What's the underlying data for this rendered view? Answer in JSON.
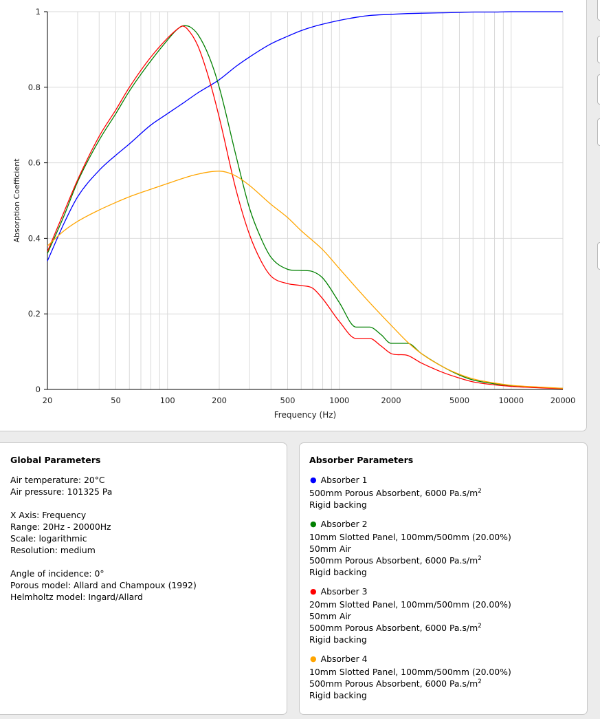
{
  "chart_data": {
    "type": "line",
    "xlabel": "Frequency (Hz)",
    "ylabel": "Absorption Coefficient",
    "x_scale": "log",
    "xlim": [
      20,
      20000
    ],
    "ylim": [
      0,
      1
    ],
    "grid": true,
    "x_ticks": [
      {
        "value": 20,
        "label": "20"
      },
      {
        "value": 50,
        "label": "50"
      },
      {
        "value": 100,
        "label": "100"
      },
      {
        "value": 200,
        "label": "200"
      },
      {
        "value": 500,
        "label": "500"
      },
      {
        "value": 1000,
        "label": "1000"
      },
      {
        "value": 2000,
        "label": "2000"
      },
      {
        "value": 5000,
        "label": "5000"
      },
      {
        "value": 10000,
        "label": "10000"
      },
      {
        "value": 20000,
        "label": "20000"
      }
    ],
    "y_ticks": [
      {
        "value": 0,
        "label": "0"
      },
      {
        "value": 0.2,
        "label": "0.2"
      },
      {
        "value": 0.4,
        "label": "0.4"
      },
      {
        "value": 0.6,
        "label": "0.6"
      },
      {
        "value": 0.8,
        "label": "0.8"
      },
      {
        "value": 1,
        "label": "1"
      }
    ],
    "series": [
      {
        "color": "#0000ff",
        "x": [
          20,
          25,
          30,
          40,
          50,
          60,
          80,
          100,
          125,
          150,
          200,
          250,
          300,
          400,
          500,
          600,
          700,
          800,
          1000,
          1250,
          1500,
          2000,
          2500,
          3000,
          4000,
          5000,
          6000,
          8000,
          10000,
          15000,
          20000
        ],
        "y": [
          0.34,
          0.44,
          0.51,
          0.58,
          0.62,
          0.65,
          0.7,
          0.73,
          0.76,
          0.785,
          0.82,
          0.855,
          0.88,
          0.915,
          0.935,
          0.95,
          0.96,
          0.967,
          0.977,
          0.985,
          0.99,
          0.993,
          0.995,
          0.996,
          0.997,
          0.998,
          0.999,
          0.999,
          1.0,
          1.0,
          1.0
        ]
      },
      {
        "color": "#008000",
        "x": [
          20,
          25,
          30,
          40,
          50,
          60,
          80,
          100,
          115,
          125,
          135,
          150,
          175,
          200,
          250,
          300,
          350,
          400,
          500,
          600,
          700,
          800,
          1000,
          1250,
          1500,
          1750,
          2000,
          2500,
          3000,
          4000,
          5000,
          6000,
          8000,
          10000,
          15000,
          20000
        ],
        "y": [
          0.36,
          0.46,
          0.55,
          0.66,
          0.73,
          0.79,
          0.87,
          0.925,
          0.955,
          0.963,
          0.96,
          0.94,
          0.88,
          0.8,
          0.62,
          0.48,
          0.4,
          0.35,
          0.318,
          0.315,
          0.312,
          0.295,
          0.23,
          0.165,
          0.165,
          0.145,
          0.122,
          0.122,
          0.095,
          0.06,
          0.038,
          0.025,
          0.015,
          0.01,
          0.005,
          0.003
        ]
      },
      {
        "color": "#ff0000",
        "x": [
          20,
          25,
          30,
          40,
          50,
          60,
          80,
          100,
          115,
          122,
          130,
          150,
          175,
          200,
          250,
          300,
          350,
          400,
          500,
          600,
          700,
          800,
          1000,
          1250,
          1500,
          1750,
          2000,
          2500,
          3000,
          4000,
          5000,
          6000,
          8000,
          10000,
          15000,
          20000
        ],
        "y": [
          0.365,
          0.47,
          0.555,
          0.67,
          0.74,
          0.8,
          0.88,
          0.93,
          0.955,
          0.962,
          0.955,
          0.91,
          0.82,
          0.72,
          0.53,
          0.41,
          0.34,
          0.3,
          0.28,
          0.275,
          0.268,
          0.24,
          0.18,
          0.135,
          0.135,
          0.115,
          0.095,
          0.09,
          0.07,
          0.045,
          0.03,
          0.02,
          0.012,
          0.008,
          0.004,
          0.002
        ]
      },
      {
        "color": "#ffa500",
        "x": [
          20,
          25,
          30,
          40,
          50,
          60,
          80,
          100,
          125,
          150,
          200,
          250,
          300,
          400,
          500,
          600,
          800,
          1000,
          1250,
          1500,
          2000,
          2500,
          3000,
          4000,
          5000,
          6000,
          8000,
          10000,
          15000,
          20000
        ],
        "y": [
          0.38,
          0.42,
          0.445,
          0.475,
          0.495,
          0.51,
          0.53,
          0.545,
          0.56,
          0.57,
          0.578,
          0.565,
          0.54,
          0.49,
          0.455,
          0.42,
          0.37,
          0.32,
          0.27,
          0.23,
          0.17,
          0.125,
          0.095,
          0.06,
          0.04,
          0.028,
          0.017,
          0.011,
          0.006,
          0.003
        ]
      }
    ]
  },
  "global_params": {
    "title": "Global Parameters",
    "air_temperature": "Air temperature: 20°C",
    "air_pressure": "Air pressure: 101325 Pa",
    "x_axis": "X Axis: Frequency",
    "range": "Range: 20Hz - 20000Hz",
    "scale": "Scale: logarithmic",
    "resolution": "Resolution: medium",
    "angle": "Angle of incidence: 0°",
    "porous_model": "Porous model: Allard and Champoux (1992)",
    "helmholtz_model": "Helmholtz model: Ingard/Allard"
  },
  "absorber_params": {
    "title": "Absorber Parameters",
    "items": [
      {
        "name": "Absorber 1",
        "color": "#0000ff",
        "layers": [
          "500mm Porous Absorbent, 6000 Pa.s/m",
          "Rigid backing"
        ]
      },
      {
        "name": "Absorber 2",
        "color": "#008000",
        "layers": [
          "10mm Slotted Panel, 100mm/500mm (20.00%)",
          "50mm Air",
          "500mm Porous Absorbent, 6000 Pa.s/m",
          "Rigid backing"
        ]
      },
      {
        "name": "Absorber 3",
        "color": "#ff0000",
        "layers": [
          "20mm Slotted Panel, 100mm/500mm (20.00%)",
          "50mm Air",
          "500mm Porous Absorbent, 6000 Pa.s/m",
          "Rigid backing"
        ]
      },
      {
        "name": "Absorber 4",
        "color": "#ffa500",
        "layers": [
          "10mm Slotted Panel, 100mm/500mm (20.00%)",
          "500mm Porous Absorbent, 6000 Pa.s/m",
          "Rigid backing"
        ]
      }
    ],
    "superscript": "2"
  }
}
